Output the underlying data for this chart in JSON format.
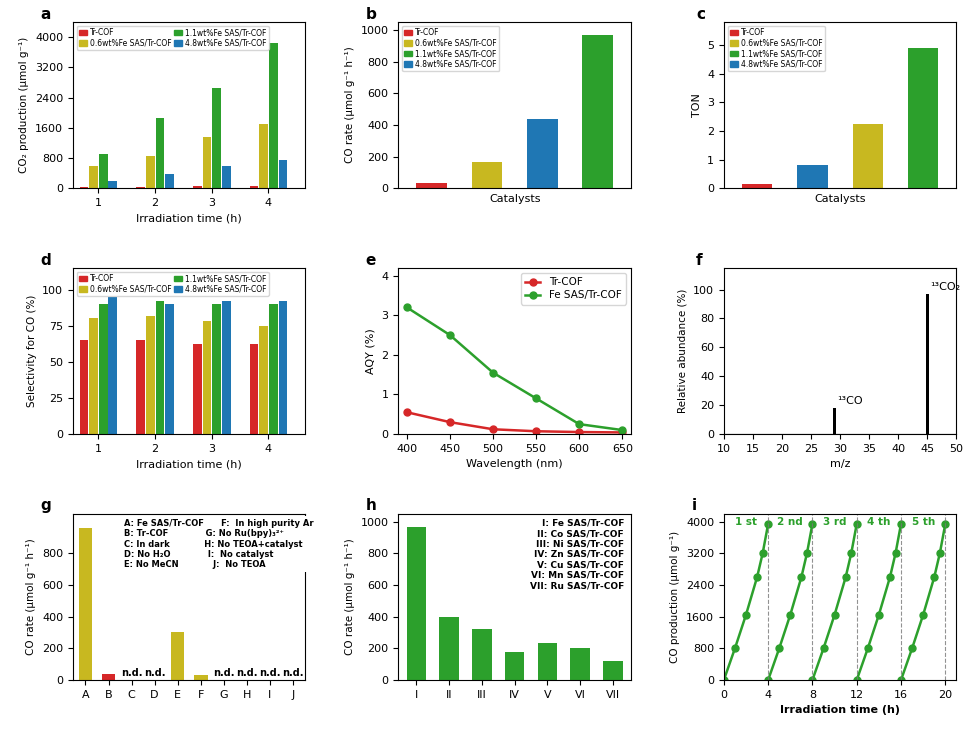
{
  "panel_a": {
    "times": [
      1,
      2,
      3,
      4
    ],
    "series": {
      "Tr-COF": [
        20,
        30,
        50,
        60
      ],
      "0.6wt%Fe SAS/Tr-COF": [
        580,
        850,
        1350,
        1700
      ],
      "1.1wt%Fe SAS/Tr-COF": [
        900,
        1850,
        2650,
        3850
      ],
      "4.8wt%Fe SAS/Tr-COF": [
        200,
        380,
        600,
        750
      ]
    },
    "ylabel": "CO₂ production (μmol g⁻¹)",
    "xlabel": "Irradiation time (h)",
    "ylim": [
      0,
      4400
    ],
    "yticks": [
      0,
      800,
      1600,
      2400,
      3200,
      4000
    ]
  },
  "panel_b": {
    "values": [
      30,
      165,
      440,
      970
    ],
    "bar_colors": [
      "#d62728",
      "#c8b820",
      "#1f77b4",
      "#2ca02c"
    ],
    "ylabel": "CO rate (μmol g⁻¹ h⁻¹)",
    "xlabel": "Catalysts",
    "ylim": [
      0,
      1050
    ],
    "yticks": [
      0,
      200,
      400,
      600,
      800,
      1000
    ]
  },
  "panel_c": {
    "values": [
      0.15,
      0.8,
      2.25,
      4.9
    ],
    "bar_colors": [
      "#d62728",
      "#1f77b4",
      "#c8b820",
      "#2ca02c"
    ],
    "ylabel": "TON",
    "xlabel": "Catalysts",
    "ylim": [
      0,
      5.8
    ],
    "yticks": [
      0,
      1,
      2,
      3,
      4,
      5
    ]
  },
  "panel_d": {
    "times": [
      1,
      2,
      3,
      4
    ],
    "series": {
      "Tr-COF": [
        65,
        65,
        62,
        62
      ],
      "0.6wt%Fe SAS/Tr-COF": [
        80,
        82,
        78,
        75
      ],
      "1.1wt%Fe SAS/Tr-COF": [
        90,
        92,
        90,
        90
      ],
      "4.8wt%Fe SAS/Tr-COF": [
        95,
        90,
        92,
        92
      ]
    },
    "ylabel": "Selectivity for CO (%)",
    "xlabel": "Irradiation time (h)",
    "ylim": [
      0,
      115
    ],
    "yticks": [
      0,
      25,
      50,
      75,
      100
    ]
  },
  "panel_e": {
    "wavelengths": [
      400,
      450,
      500,
      550,
      600,
      650
    ],
    "series": {
      "Tr-COF": [
        0.55,
        0.3,
        0.12,
        0.07,
        0.05,
        0.04
      ],
      "Fe SAS/Tr-COF": [
        3.2,
        2.5,
        1.55,
        0.9,
        0.25,
        0.1
      ]
    },
    "colors": {
      "Tr-COF": "#d62728",
      "Fe SAS/Tr-COF": "#2ca02c"
    },
    "ylabel": "AQY (%)",
    "xlabel": "Wavelength (nm)",
    "ylim": [
      0,
      4.2
    ],
    "yticks": [
      0,
      1,
      2,
      3,
      4
    ],
    "xlim": [
      390,
      660
    ],
    "xticks": [
      400,
      450,
      500,
      550,
      600,
      650
    ]
  },
  "panel_f": {
    "ylabel": "Relative abundance (%)",
    "xlabel": "m/z",
    "xlim": [
      10,
      50
    ],
    "ylim": [
      0,
      115
    ],
    "yticks": [
      0,
      20,
      40,
      60,
      80,
      100
    ],
    "xticks": [
      10,
      15,
      20,
      25,
      30,
      35,
      40,
      45,
      50
    ],
    "peaks": [
      {
        "mz": 29,
        "height": 18,
        "label": "¹³CO"
      },
      {
        "mz": 45,
        "height": 97,
        "label": "¹³CO₂"
      }
    ]
  },
  "panel_g": {
    "categories": [
      "A",
      "B",
      "C",
      "D",
      "E",
      "F",
      "G",
      "H",
      "I",
      "J"
    ],
    "values": [
      960,
      35,
      0,
      0,
      300,
      30,
      0,
      0,
      0,
      0
    ],
    "nd_indices": [
      2,
      3,
      6,
      7,
      8,
      9
    ],
    "bar_colors": [
      "#c8b820",
      "#d62728",
      "#c8b820",
      "#c8b820",
      "#c8b820",
      "#c8b820",
      "#c8b820",
      "#c8b820",
      "#c8b820",
      "#c8b820"
    ],
    "ylabel": "CO rate (μmol g⁻¹ h⁻¹)",
    "ylim": [
      0,
      1050
    ],
    "yticks": [
      0,
      200,
      400,
      600,
      800
    ],
    "legend_lines": [
      [
        "A: Fe SAS/Tr-COF",
        "F:  In high purity Ar"
      ],
      [
        "B: Tr-COF",
        "G: No Ru(bpy)₃²⁺"
      ],
      [
        "C: In dark",
        "H: No TEOA+catalyst"
      ],
      [
        "D: No H₂O",
        "I:  No catalyst"
      ],
      [
        "E: No MeCN",
        "J:  No TEOA"
      ]
    ]
  },
  "panel_h": {
    "categories": [
      "I",
      "II",
      "III",
      "IV",
      "V",
      "VI",
      "VII"
    ],
    "values": [
      965,
      400,
      320,
      175,
      235,
      200,
      120
    ],
    "bar_color": "#2ca02c",
    "ylabel": "CO rate (μmol g⁻¹ h⁻¹)",
    "ylim": [
      0,
      1050
    ],
    "yticks": [
      0,
      200,
      400,
      600,
      800,
      1000
    ],
    "legend_lines": [
      "I: Fe SAS/Tr-COF",
      "II: Co SAS/Tr-COF",
      "III: Ni SAS/Tr-COF",
      "IV: Zn SAS/Tr-COF",
      "V: Cu SAS/Tr-COF",
      "VI: Mn SAS/Tr-COF",
      "VII: Ru SAS/Tr-COF"
    ]
  },
  "panel_i": {
    "cycles": 5,
    "ylabel": "CO production (μmol g⁻¹)",
    "xlabel": "Irradiation time (h)",
    "xlim": [
      0,
      21
    ],
    "ylim": [
      0,
      4200
    ],
    "yticks": [
      0,
      800,
      1600,
      2400,
      3200,
      4000
    ],
    "xticks": [
      0,
      4,
      8,
      12,
      16,
      20
    ],
    "cycle_labels": [
      "1 st",
      "2 nd",
      "3 rd",
      "4 th",
      "5 th"
    ],
    "line_color": "#2ca02c",
    "y_per_cycle": [
      0,
      800,
      1600,
      2400,
      3200,
      3950
    ],
    "x_per_cycle_rel": [
      0,
      1,
      2,
      3,
      3.5,
      4
    ]
  },
  "colors": {
    "red": "#d62728",
    "yellow": "#c8b820",
    "green": "#2ca02c",
    "blue": "#1f77b4"
  },
  "labels4": [
    "Tr-COF",
    "0.6wt%Fe SAS/Tr-COF",
    "1.1wt%Fe SAS/Tr-COF",
    "4.8wt%Fe SAS/Tr-COF"
  ],
  "colors4": [
    "#d62728",
    "#c8b820",
    "#2ca02c",
    "#1f77b4"
  ]
}
